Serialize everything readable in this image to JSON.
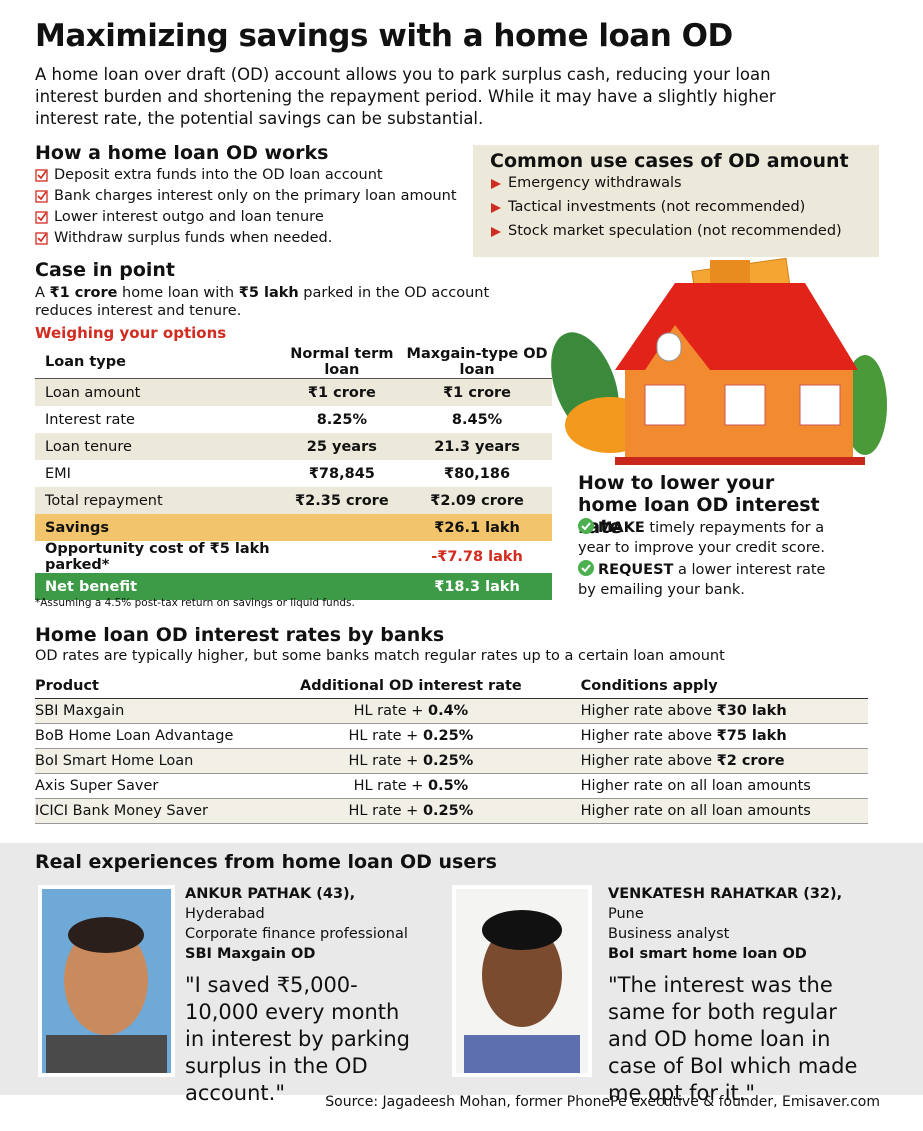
{
  "title": "Maximizing savings with a home loan OD",
  "intro": "A home loan over draft (OD) account allows you to park surplus cash, reducing your loan interest burden and shortening the repayment period. While it may have a slightly higher interest rate, the potential savings can be substantial.",
  "how_it_works": {
    "heading": "How a home loan OD works",
    "items": [
      "Deposit extra funds into the OD loan account",
      "Bank charges interest only on the primary loan amount",
      "Lower interest outgo and loan tenure",
      "Withdraw surplus funds when needed."
    ]
  },
  "use_cases": {
    "heading": "Common use cases of OD amount",
    "items": [
      "Emergency withdrawals",
      "Tactical investments (not recommended)",
      "Stock market speculation (not recommended)"
    ]
  },
  "case_in_point": {
    "heading": "Case in point",
    "text": [
      "A ",
      "₹1 crore",
      " home loan with ",
      "₹5 lakh",
      " parked in the OD account reduces interest and tenure."
    ],
    "subheading": "Weighing your options",
    "table": {
      "header": [
        "Loan type",
        "Normal term loan",
        "Maxgain-type OD loan"
      ],
      "rows": [
        [
          "Loan amount",
          "₹1 crore",
          "₹1 crore"
        ],
        [
          "Interest rate",
          "8.25%",
          "8.45%"
        ],
        [
          "Loan tenure",
          "25 years",
          "21.3 years"
        ],
        [
          "EMI",
          "₹78,845",
          "₹80,186"
        ],
        [
          "Total repayment",
          "₹2.35 crore",
          "₹2.09 crore"
        ],
        [
          "Savings",
          null,
          "₹26.1 lakh"
        ],
        [
          "Opportunity cost of ₹5 lakh parked*",
          null,
          "-₹7.78 lakh"
        ],
        [
          "Net benefit",
          null,
          "₹18.3 lakh"
        ]
      ]
    },
    "footnote": "*Assuming a 4.5% post-tax return on savings or liquid funds."
  },
  "lower_rate": {
    "heading": "How to lower your home loan OD interest rate",
    "tips": [
      [
        "MAKE",
        " timely repayments for a year to improve your credit score."
      ],
      [
        "REQUEST",
        " a lower interest rate by emailing your bank."
      ]
    ]
  },
  "banks": {
    "heading": "Home loan OD interest rates by banks",
    "subtitle": "OD rates are typically higher, but some banks match regular rates up to a certain loan amount",
    "header": [
      "Product",
      "Additional OD interest rate",
      "Conditions apply"
    ],
    "rows": [
      [
        "SBI Maxgain",
        [
          "HL rate + ",
          "0.4%"
        ],
        [
          "Higher rate above ",
          "₹30 lakh"
        ]
      ],
      [
        "BoB Home Loan Advantage",
        [
          "HL rate + ",
          "0.25%"
        ],
        [
          "Higher rate above ",
          "₹75 lakh"
        ]
      ],
      [
        "BoI Smart Home Loan",
        [
          "HL rate + ",
          "0.25%"
        ],
        [
          "Higher rate above ",
          "₹2 crore"
        ]
      ],
      [
        "Axis Super Saver",
        [
          "HL rate + ",
          "0.5%"
        ],
        [
          "Higher rate on all loan amounts"
        ]
      ],
      [
        "ICICI Bank Money Saver",
        [
          "HL rate + ",
          "0.25%"
        ],
        [
          "Higher rate on all loan amounts"
        ]
      ]
    ]
  },
  "experiences": {
    "heading": "Real experiences from home loan OD users",
    "people": [
      {
        "name": "ANKUR PATHAK (43),",
        "city": "Hyderabad",
        "profession": "Corporate finance professional",
        "plan": "SBI Maxgain OD",
        "quote": "\"I saved ₹5,000-10,000 every month in interest by parking surplus in the OD account.\""
      },
      {
        "name": "VENKATESH RAHATKAR (32),",
        "city": "Pune",
        "profession": "Business analyst",
        "plan": "BoI smart home loan OD",
        "quote": "\"The interest was the same for both regular and OD home loan in case of BoI which made me opt for it.\""
      }
    ]
  },
  "source": "Source: Jagadeesh Mohan, former PhonePe executive & founder, Emisaver.com"
}
